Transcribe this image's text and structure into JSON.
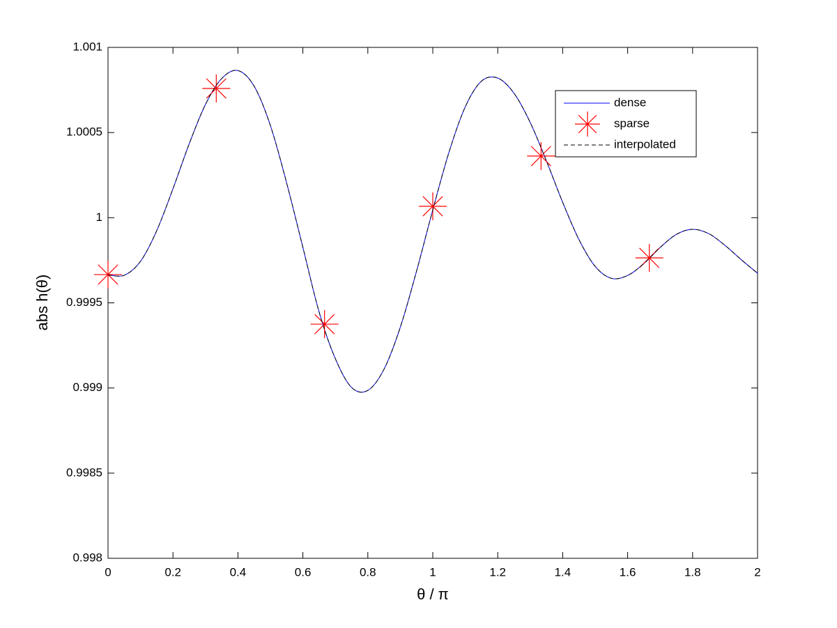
{
  "chart_data": {
    "type": "line",
    "xlabel": "θ / π",
    "ylabel": "abs h(θ)",
    "xlim": [
      0,
      2
    ],
    "ylim": [
      0.998,
      1.001
    ],
    "xticks": [
      0,
      0.2,
      0.4,
      0.6,
      0.8,
      1,
      1.2,
      1.4,
      1.6,
      1.8,
      2
    ],
    "yticks": [
      0.998,
      0.9985,
      0.999,
      0.9995,
      1,
      1.0005,
      1.001
    ],
    "legend": "upper right",
    "grid": false,
    "series": [
      {
        "name": "dense",
        "color": "#0000ff",
        "style": "solid",
        "x": [
          0,
          0.05,
          0.1,
          0.15,
          0.2,
          0.25,
          0.3,
          0.35,
          0.4,
          0.45,
          0.5,
          0.55,
          0.6,
          0.65,
          0.7,
          0.75,
          0.8,
          0.85,
          0.9,
          0.95,
          1,
          1.05,
          1.1,
          1.15,
          1.2,
          1.25,
          1.3,
          1.35,
          1.4,
          1.45,
          1.5,
          1.55,
          1.6,
          1.65,
          1.7,
          1.75,
          1.8,
          1.85,
          1.9,
          1.95,
          2
        ],
        "values": [
          0.999664,
          0.999662,
          0.999744,
          0.999924,
          1.00017,
          1.000434,
          1.000665,
          1.000817,
          1.000864,
          1.000772,
          1.000541,
          1.000204,
          0.999826,
          0.999446,
          0.999172,
          0.999003,
          0.998986,
          0.999111,
          0.999357,
          0.999686,
          1.000046,
          1.000385,
          1.000651,
          1.000802,
          1.00082,
          1.000731,
          1.000559,
          1.000333,
          1.00009,
          0.999872,
          0.999714,
          0.999644,
          0.999661,
          0.999731,
          0.999825,
          0.999902,
          0.999932,
          0.999906,
          0.999837,
          0.999753,
          0.999674
        ]
      },
      {
        "name": "sparse",
        "color": "#ff0000",
        "style": "marker",
        "x": [
          0,
          0.3333,
          0.6667,
          1,
          1.3333,
          1.6667
        ],
        "values": [
          0.999666,
          1.000759,
          0.999375,
          1.000067,
          1.000362,
          0.999764
        ]
      },
      {
        "name": "interpolated",
        "color": "#000000",
        "style": "dashed",
        "x": [
          0,
          0.05,
          0.1,
          0.15,
          0.2,
          0.25,
          0.3,
          0.35,
          0.4,
          0.45,
          0.5,
          0.55,
          0.6,
          0.65,
          0.7,
          0.75,
          0.8,
          0.85,
          0.9,
          0.95,
          1,
          1.05,
          1.1,
          1.15,
          1.2,
          1.25,
          1.3,
          1.35,
          1.4,
          1.45,
          1.5,
          1.55,
          1.6,
          1.65,
          1.7,
          1.75,
          1.8,
          1.85,
          1.9,
          1.95,
          2
        ],
        "values": [
          0.999664,
          0.999662,
          0.999744,
          0.999924,
          1.00017,
          1.000434,
          1.000665,
          1.000817,
          1.000864,
          1.000772,
          1.000541,
          1.000204,
          0.999826,
          0.999446,
          0.999172,
          0.999003,
          0.998986,
          0.999111,
          0.999357,
          0.999686,
          1.000046,
          1.000385,
          1.000651,
          1.000802,
          1.00082,
          1.000731,
          1.000559,
          1.000333,
          1.00009,
          0.999872,
          0.999714,
          0.999644,
          0.999661,
          0.999731,
          0.999825,
          0.999902,
          0.999932,
          0.999906,
          0.999837,
          0.999753,
          0.999674
        ]
      }
    ]
  }
}
